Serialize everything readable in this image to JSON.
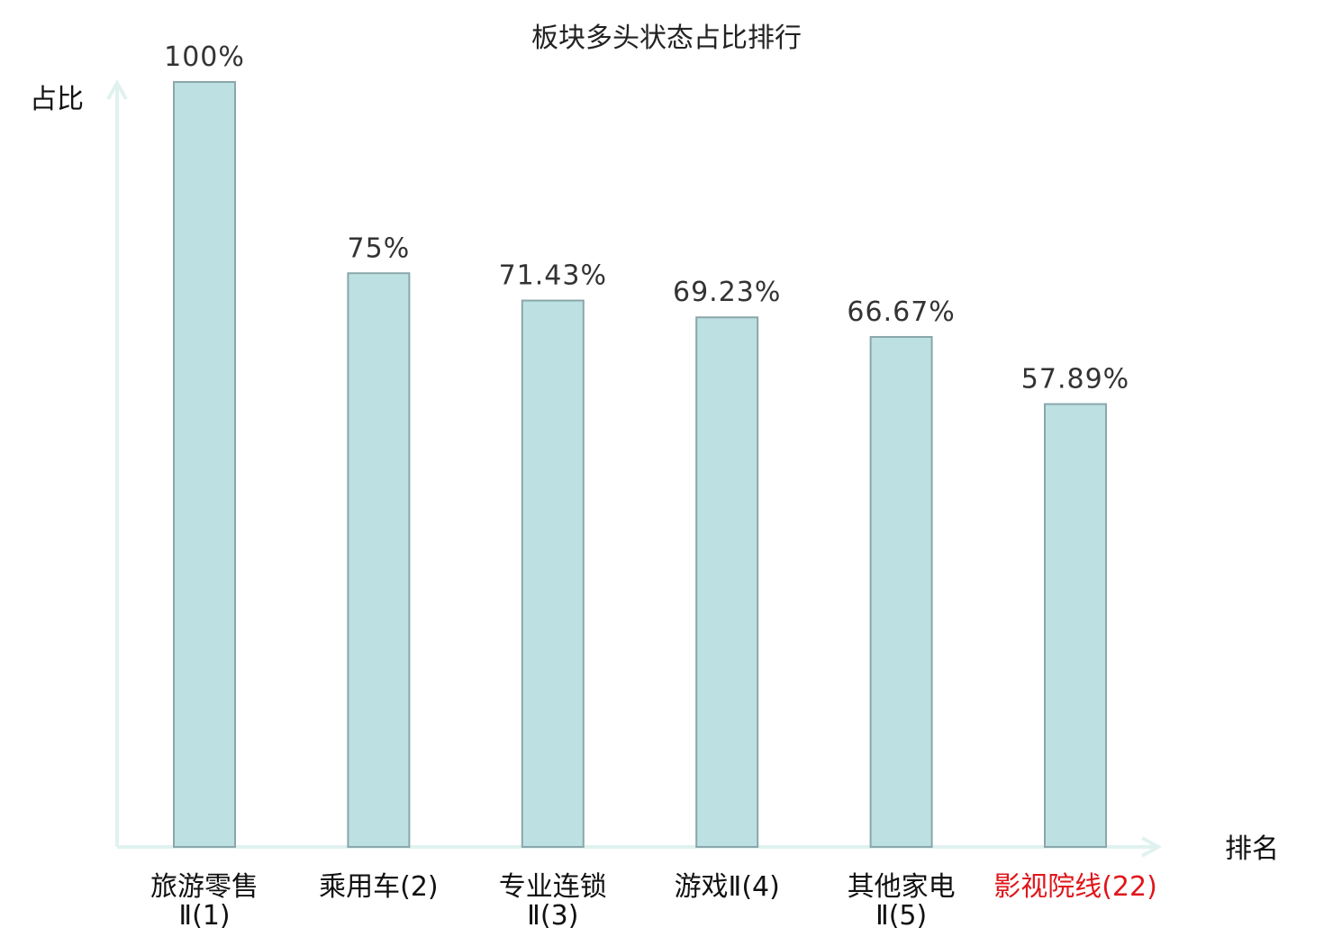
{
  "chart_data": {
    "type": "bar",
    "title": "板块多头状态占比排行",
    "ylabel": "占比",
    "xlabel": "排名",
    "ylim": [
      0,
      100
    ],
    "grid": false,
    "categories": [
      {
        "line1": "旅游零售",
        "line2": "Ⅱ(1)",
        "highlight": false
      },
      {
        "line1": "乘用车(2)",
        "line2": "",
        "highlight": false
      },
      {
        "line1": "专业连锁",
        "line2": "Ⅱ(3)",
        "highlight": false
      },
      {
        "line1": "游戏Ⅱ(4)",
        "line2": "",
        "highlight": false
      },
      {
        "line1": "其他家电",
        "line2": "Ⅱ(5)",
        "highlight": false
      },
      {
        "line1": "影视院线(22)",
        "line2": "",
        "highlight": true
      }
    ],
    "values": [
      100,
      75,
      71.43,
      69.23,
      66.67,
      57.89
    ],
    "value_labels": [
      "100%",
      "75%",
      "71.43%",
      "69.23%",
      "66.67%",
      "57.89%"
    ]
  },
  "colors": {
    "bar_fill": "#bde0e3",
    "bar_stroke": "#8aa7aa",
    "axis": "#e0f2f0",
    "highlight": "#e0161b"
  }
}
